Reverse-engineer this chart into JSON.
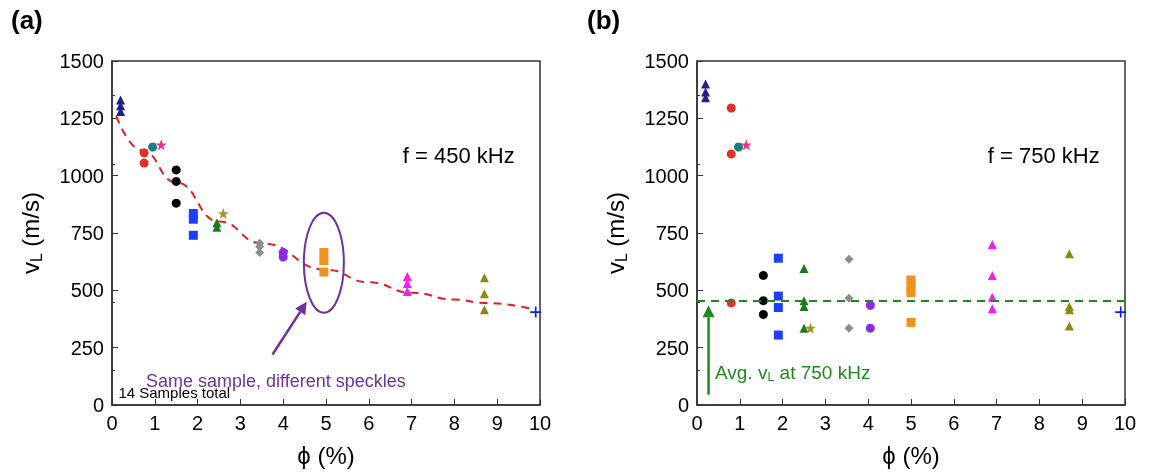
{
  "chart_data": [
    {
      "type": "scatter",
      "title": "(a)",
      "xlabel": "ϕ (%)",
      "ylabel": "v$_{L}$ (m/s)",
      "xlim": [
        0,
        10
      ],
      "ylim": [
        0,
        1500
      ],
      "xticks": [
        0,
        1,
        2,
        3,
        4,
        5,
        6,
        7,
        8,
        9,
        10
      ],
      "yticks": [
        0,
        250,
        500,
        750,
        1000,
        1250,
        1500
      ],
      "annotations": [
        "f = 450 kHz",
        "Same sample, different speckles",
        "14 Samples total"
      ],
      "series": [
        {
          "color": "#1f1f8f",
          "marker": "triangle",
          "x": [
            0.2,
            0.2,
            0.2
          ],
          "values": [
            1330,
            1305,
            1280
          ]
        },
        {
          "color": "#e0302a",
          "marker": "circle",
          "x": [
            0.75,
            0.75
          ],
          "values": [
            1100,
            1055
          ]
        },
        {
          "color": "#178080",
          "marker": "circle",
          "x": [
            0.95
          ],
          "values": [
            1125
          ]
        },
        {
          "color": "#ff2a8a",
          "marker": "star",
          "x": [
            1.15
          ],
          "values": [
            1135
          ]
        },
        {
          "color": "#000000",
          "marker": "circle",
          "x": [
            1.5,
            1.5,
            1.5
          ],
          "values": [
            1025,
            975,
            880
          ]
        },
        {
          "color": "#1f3fff",
          "marker": "square",
          "x": [
            1.9,
            1.9,
            1.9
          ],
          "values": [
            835,
            810,
            740
          ]
        },
        {
          "color": "#1e7a1e",
          "marker": "triangle",
          "x": [
            2.45,
            2.45
          ],
          "values": [
            795,
            775
          ]
        },
        {
          "color": "#9a9a20",
          "marker": "star",
          "x": [
            2.6
          ],
          "values": [
            835
          ]
        },
        {
          "color": "#8c8c8c",
          "marker": "diamond",
          "x": [
            3.45,
            3.45,
            3.45
          ],
          "values": [
            705,
            690,
            665
          ]
        },
        {
          "color": "#8a2be2",
          "marker": "circle",
          "x": [
            4.0,
            4.0
          ],
          "values": [
            665,
            645
          ]
        },
        {
          "color": "#f0921e",
          "marker": "square",
          "x": [
            4.95,
            4.95,
            4.95
          ],
          "values": [
            665,
            630,
            580
          ]
        },
        {
          "color": "#f020f0",
          "marker": "triangle",
          "x": [
            6.9,
            6.9,
            6.9
          ],
          "values": [
            560,
            530,
            495
          ]
        },
        {
          "color": "#8a8a10",
          "marker": "triangle",
          "x": [
            8.7,
            8.7,
            8.7
          ],
          "values": [
            555,
            485,
            415
          ]
        },
        {
          "color": "#0a1aff",
          "marker": "cross",
          "x": [
            9.9
          ],
          "values": [
            405
          ]
        },
        {
          "type": "line",
          "color": "#e02020",
          "marker": "none",
          "line_style": "dashed",
          "x": [
            0.1,
            0.7,
            1.5,
            2.5,
            3.5,
            5,
            6,
            7,
            8,
            8.7,
            9.9
          ],
          "values": [
            1260,
            1110,
            970,
            800,
            705,
            590,
            535,
            490,
            460,
            445,
            415
          ]
        }
      ]
    },
    {
      "type": "scatter",
      "title": "(b)",
      "xlabel": "ϕ (%)",
      "ylabel": "v$_{L}$ (m/s)",
      "xlim": [
        0,
        10
      ],
      "ylim": [
        0,
        1500
      ],
      "xticks": [
        0,
        1,
        2,
        3,
        4,
        5,
        6,
        7,
        8,
        9,
        10
      ],
      "yticks": [
        0,
        250,
        500,
        750,
        1000,
        1250,
        1500
      ],
      "annotations": [
        "f = 750 kHz"
      ],
      "ref_lines": [
        {
          "axis": "y",
          "value": 455,
          "label": "Avg. v$_{L}$ at 750 kHz",
          "color": "#1e8a1e",
          "line_style": "dashed"
        }
      ],
      "series": [
        {
          "color": "#1f1f8f",
          "marker": "triangle",
          "x": [
            0.2,
            0.2,
            0.2
          ],
          "values": [
            1400,
            1365,
            1340
          ]
        },
        {
          "color": "#e0302a",
          "marker": "circle",
          "x": [
            0.8,
            0.8,
            0.8
          ],
          "values": [
            1295,
            1095,
            445
          ]
        },
        {
          "color": "#178080",
          "marker": "circle",
          "x": [
            0.97
          ],
          "values": [
            1125
          ]
        },
        {
          "color": "#ff2a8a",
          "marker": "star",
          "x": [
            1.15
          ],
          "values": [
            1135
          ]
        },
        {
          "color": "#000000",
          "marker": "circle",
          "x": [
            1.55,
            1.55,
            1.55
          ],
          "values": [
            565,
            455,
            395
          ]
        },
        {
          "color": "#1f3fff",
          "marker": "square",
          "x": [
            1.9,
            1.9,
            1.9,
            1.9
          ],
          "values": [
            640,
            475,
            425,
            305
          ]
        },
        {
          "color": "#1e7a1e",
          "marker": "triangle",
          "x": [
            2.5,
            2.5,
            2.5,
            2.5
          ],
          "values": [
            595,
            455,
            430,
            335
          ]
        },
        {
          "color": "#9a9a20",
          "marker": "star",
          "x": [
            2.65
          ],
          "values": [
            335
          ]
        },
        {
          "color": "#8c8c8c",
          "marker": "diamond",
          "x": [
            3.55,
            3.55,
            3.55
          ],
          "values": [
            635,
            465,
            335
          ]
        },
        {
          "color": "#8a2be2",
          "marker": "circle",
          "x": [
            4.05,
            4.05
          ],
          "values": [
            435,
            335
          ]
        },
        {
          "color": "#f0921e",
          "marker": "square",
          "x": [
            5.0,
            5.0,
            5.0,
            5.0
          ],
          "values": [
            545,
            515,
            490,
            360
          ]
        },
        {
          "color": "#f020f0",
          "marker": "triangle",
          "x": [
            6.9,
            6.9,
            6.9,
            6.9
          ],
          "values": [
            700,
            565,
            470,
            420
          ]
        },
        {
          "color": "#8a8a10",
          "marker": "triangle",
          "x": [
            8.7,
            8.7,
            8.7,
            8.7
          ],
          "values": [
            660,
            430,
            415,
            345
          ]
        },
        {
          "color": "#0a1aff",
          "marker": "cross",
          "x": [
            9.9
          ],
          "values": [
            405
          ]
        }
      ]
    }
  ]
}
